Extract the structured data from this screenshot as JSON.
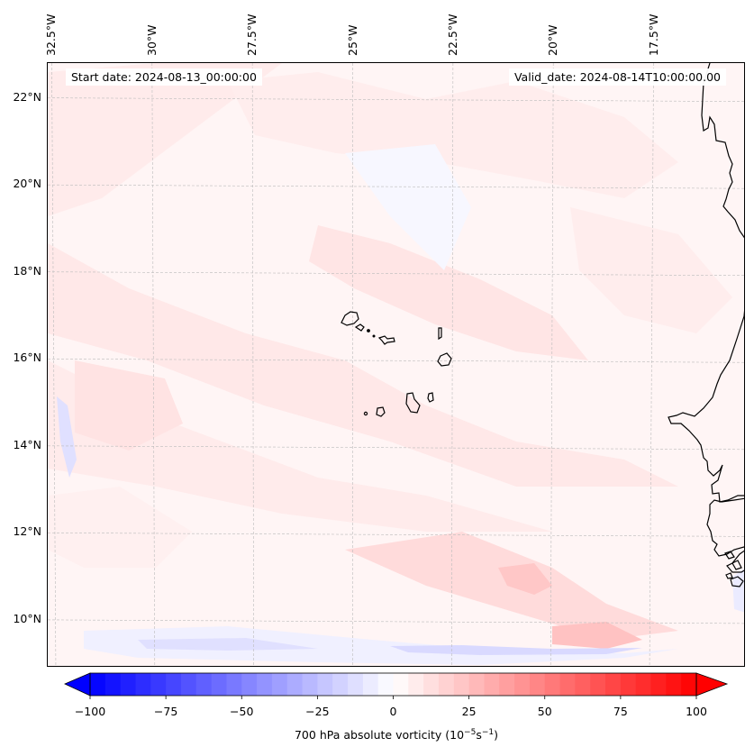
{
  "figure": {
    "start_date_text": "Start date: 2024-08-13_00:00:00",
    "valid_date_text": "Valid_date: 2024-08-14T10:00:00.00"
  },
  "map": {
    "projection_note": "lat/lon map, Cape Verde region and West African coast",
    "lon_ticks": [
      "32.5°W",
      "30°W",
      "27.5°W",
      "25°W",
      "22.5°W",
      "20°W",
      "17.5°W"
    ],
    "lat_ticks": [
      "22°N",
      "20°N",
      "18°N",
      "16°N",
      "14°N",
      "12°N",
      "10°N"
    ],
    "lon_range_deg": [
      -32.6,
      -15.2
    ],
    "lat_range_deg": [
      8.9,
      22.8
    ],
    "gridlines": "dashed light gray",
    "background_value_note": "mostly weak positive vorticity (0 to 15), a few weak negative bands"
  },
  "colorbar": {
    "label_prefix": "700 hPa absolute vorticity (10",
    "label_exp1": "−5",
    "label_mid": "s",
    "label_exp2": "−1",
    "label_suffix": ")",
    "ticks": [
      "−100",
      "−75",
      "−50",
      "−25",
      "0",
      "25",
      "50",
      "75",
      "100"
    ],
    "tick_values": [
      -100,
      -75,
      -50,
      -25,
      0,
      25,
      50,
      75,
      100
    ],
    "min": -100,
    "max": 100,
    "step": 5,
    "extend": "both",
    "colormap": "bwr",
    "low_color": "#0000ff",
    "mid_color": "#ffffff",
    "high_color": "#ff0000"
  },
  "chart_data": {
    "type": "heatmap",
    "title": "",
    "xlabel": "",
    "ylabel": "",
    "x_ticks": [
      "32.5°W",
      "30°W",
      "27.5°W",
      "25°W",
      "22.5°W",
      "20°W",
      "17.5°W"
    ],
    "y_ticks": [
      "22°N",
      "20°N",
      "18°N",
      "16°N",
      "14°N",
      "12°N",
      "10°N"
    ],
    "colorbar_label": "700 hPa absolute vorticity (10^-5 s^-1)",
    "value_range": [
      -100,
      100
    ],
    "annotations": [
      "Start date: 2024-08-13_00:00:00",
      "Valid_date: 2024-08-14T10:00:00.00"
    ],
    "features": [
      {
        "name": "weak positive bands",
        "orientation": "NW-SE",
        "approx_value": 10
      },
      {
        "name": "positive maximum",
        "lon": -19.5,
        "lat": 9.6,
        "approx_value": 25
      },
      {
        "name": "positive maximum",
        "lon": -20.9,
        "lat": 10.8,
        "approx_value": 20
      },
      {
        "name": "negative band",
        "lat": 9.3,
        "lon_range": [
          -29.5,
          -16.5
        ],
        "approx_value": -15
      },
      {
        "name": "negative filament",
        "lon": -32.4,
        "lat": 14.2,
        "approx_value": -15
      }
    ]
  }
}
